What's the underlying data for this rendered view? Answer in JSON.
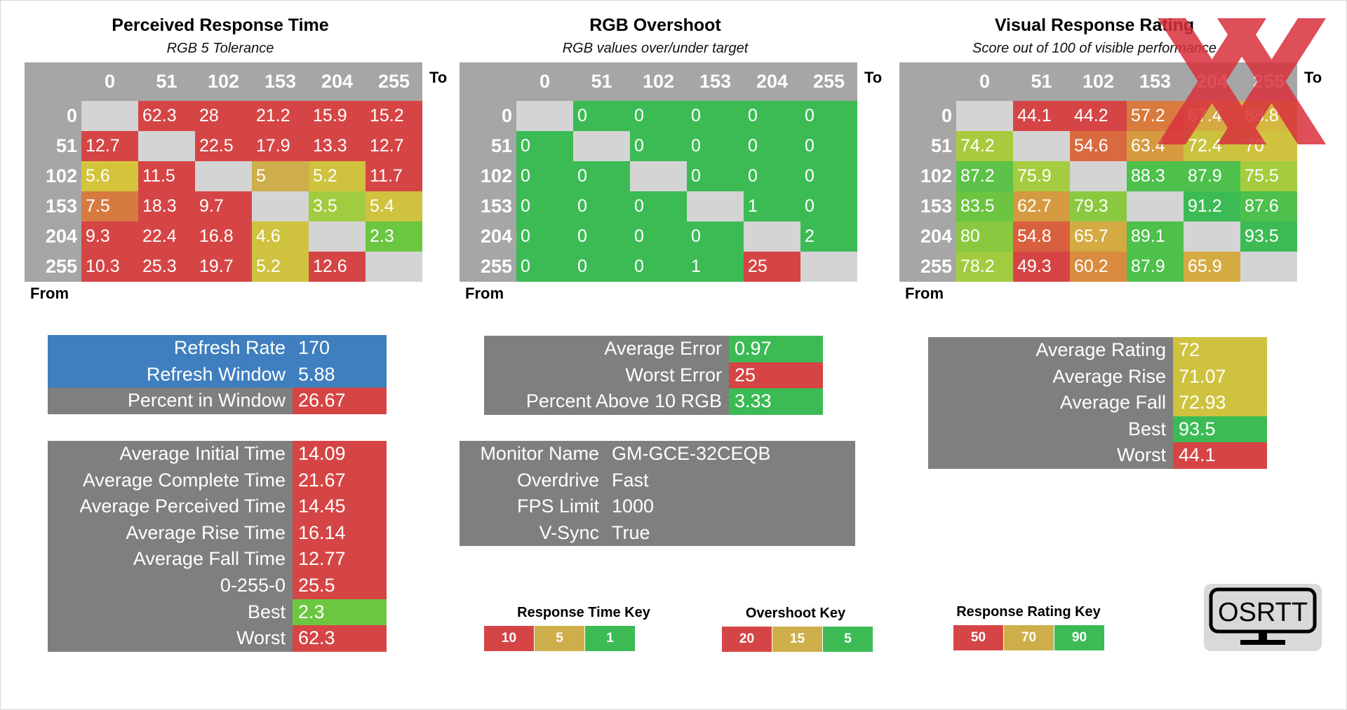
{
  "chart_data": [
    {
      "type": "heatmap",
      "title": "Perceived Response Time",
      "subtitle": "RGB 5 Tolerance",
      "to_label": "To",
      "from_label": "From",
      "columns": [
        "0",
        "51",
        "102",
        "153",
        "204",
        "255"
      ],
      "rows": [
        "0",
        "51",
        "102",
        "153",
        "204",
        "255"
      ],
      "values": [
        [
          null,
          "62.3",
          "28",
          "21.2",
          "15.9",
          "15.2"
        ],
        [
          "12.7",
          null,
          "22.5",
          "17.9",
          "13.3",
          "12.7"
        ],
        [
          "5.6",
          "11.5",
          null,
          "5",
          "5.2",
          "11.7"
        ],
        [
          "7.5",
          "18.3",
          "9.7",
          null,
          "3.5",
          "5.4"
        ],
        [
          "9.3",
          "22.4",
          "16.8",
          "4.6",
          null,
          "2.3"
        ],
        [
          "10.3",
          "25.3",
          "19.7",
          "5.2",
          "12.6",
          null
        ]
      ],
      "colors": [
        [
          null,
          "#d64545",
          "#d64545",
          "#d64545",
          "#d64545",
          "#d64545"
        ],
        [
          "#d64545",
          null,
          "#d64545",
          "#d64545",
          "#d64545",
          "#d64545"
        ],
        [
          "#d4c43b",
          "#d64545",
          null,
          "#cdae4a",
          "#cfc23e",
          "#d64545"
        ],
        [
          "#d67a3f",
          "#d64545",
          "#d64545",
          null,
          "#a2cc3f",
          "#cfc23e"
        ],
        [
          "#d64545",
          "#d64545",
          "#d64545",
          "#cfc23e",
          null,
          "#6cc740"
        ],
        [
          "#d64545",
          "#d64545",
          "#d64545",
          "#cfc23e",
          "#d64545",
          null
        ]
      ]
    },
    {
      "type": "heatmap",
      "title": "RGB Overshoot",
      "subtitle": "RGB values over/under target",
      "to_label": "To",
      "from_label": "From",
      "columns": [
        "0",
        "51",
        "102",
        "153",
        "204",
        "255"
      ],
      "rows": [
        "0",
        "51",
        "102",
        "153",
        "204",
        "255"
      ],
      "values": [
        [
          null,
          "0",
          "0",
          "0",
          "0",
          "0"
        ],
        [
          "0",
          null,
          "0",
          "0",
          "0",
          "0"
        ],
        [
          "0",
          "0",
          null,
          "0",
          "0",
          "0"
        ],
        [
          "0",
          "0",
          "0",
          null,
          "1",
          "0"
        ],
        [
          "0",
          "0",
          "0",
          "0",
          null,
          "2"
        ],
        [
          "0",
          "0",
          "0",
          "1",
          "25",
          null
        ]
      ],
      "colors": [
        [
          null,
          "#3cbb55",
          "#3cbb55",
          "#3cbb55",
          "#3cbb55",
          "#3cbb55"
        ],
        [
          "#3cbb55",
          null,
          "#3cbb55",
          "#3cbb55",
          "#3cbb55",
          "#3cbb55"
        ],
        [
          "#3cbb55",
          "#3cbb55",
          null,
          "#3cbb55",
          "#3cbb55",
          "#3cbb55"
        ],
        [
          "#3cbb55",
          "#3cbb55",
          "#3cbb55",
          null,
          "#3cbb55",
          "#3cbb55"
        ],
        [
          "#3cbb55",
          "#3cbb55",
          "#3cbb55",
          "#3cbb55",
          null,
          "#3cbb55"
        ],
        [
          "#3cbb55",
          "#3cbb55",
          "#3cbb55",
          "#3cbb55",
          "#d64545",
          null
        ]
      ]
    },
    {
      "type": "heatmap",
      "title": "Visual Response Rating",
      "subtitle": "Score out of 100 of visible performance",
      "to_label": "To",
      "from_label": "From",
      "columns": [
        "0",
        "51",
        "102",
        "153",
        "204",
        "255"
      ],
      "rows": [
        "0",
        "51",
        "102",
        "153",
        "204",
        "255"
      ],
      "values": [
        [
          null,
          "44.1",
          "44.2",
          "57.2",
          "67.4",
          "68.8"
        ],
        [
          "74.2",
          null,
          "54.6",
          "63.4",
          "72.4",
          "70"
        ],
        [
          "87.2",
          "75.9",
          null,
          "88.3",
          "87.9",
          "75.5"
        ],
        [
          "83.5",
          "62.7",
          "79.3",
          null,
          "91.2",
          "87.6"
        ],
        [
          "80",
          "54.8",
          "65.7",
          "89.1",
          null,
          "93.5"
        ],
        [
          "78.2",
          "49.3",
          "60.2",
          "87.9",
          "65.9",
          null
        ]
      ],
      "colors": [
        [
          null,
          "#d64545",
          "#d64545",
          "#d97a3f",
          "#d4ab42",
          "#d4b83f"
        ],
        [
          "#a9ca3e",
          null,
          "#d96a40",
          "#d69a40",
          "#cbc33e",
          "#cfc23e"
        ],
        [
          "#5cc249",
          "#a5cc3e",
          null,
          "#4ec04c",
          "#4ec04c",
          "#a5cc3e"
        ],
        [
          "#6cc440",
          "#d49a40",
          "#8ac93f",
          null,
          "#3cbb55",
          "#4ec04c"
        ],
        [
          "#8ac93f",
          "#d9603f",
          "#d4ab42",
          "#4ec04c",
          null,
          "#3cbb55"
        ],
        [
          "#a2cc3f",
          "#d64545",
          "#d98b40",
          "#4ec04c",
          "#d4ab42",
          null
        ]
      ]
    }
  ],
  "panels": {
    "refresh": [
      {
        "label": "Refresh Rate",
        "value": "170",
        "label_bg": "#3f7fbf",
        "value_bg": "#3f7fbf"
      },
      {
        "label": "Refresh Window",
        "value": "5.88",
        "label_bg": "#3f7fbf",
        "value_bg": "#3f7fbf"
      },
      {
        "label": "Percent in Window",
        "value": "26.67",
        "label_bg": "#7f7f7f",
        "value_bg": "#d64545"
      }
    ],
    "error": [
      {
        "label": "Average Error",
        "value": "0.97",
        "value_bg": "#3cbb55"
      },
      {
        "label": "Worst Error",
        "value": "25",
        "value_bg": "#d64545"
      },
      {
        "label": "Percent Above 10 RGB",
        "value": "3.33",
        "value_bg": "#3cbb55"
      }
    ],
    "rating": [
      {
        "label": "Average Rating",
        "value": "72",
        "value_bg": "#cfc23e"
      },
      {
        "label": "Average Rise",
        "value": "71.07",
        "value_bg": "#cfc23e"
      },
      {
        "label": "Average Fall",
        "value": "72.93",
        "value_bg": "#cfc23e"
      },
      {
        "label": "Best",
        "value": "93.5",
        "value_bg": "#3cbb55"
      },
      {
        "label": "Worst",
        "value": "44.1",
        "value_bg": "#d64545"
      }
    ],
    "times": [
      {
        "label": "Average Initial Time",
        "value": "14.09",
        "value_bg": "#d64545"
      },
      {
        "label": "Average Complete Time",
        "value": "21.67",
        "value_bg": "#d64545"
      },
      {
        "label": "Average Perceived Time",
        "value": "14.45",
        "value_bg": "#d64545"
      },
      {
        "label": "Average Rise Time",
        "value": "16.14",
        "value_bg": "#d64545"
      },
      {
        "label": "Average Fall Time",
        "value": "12.77",
        "value_bg": "#d64545"
      },
      {
        "label": "0-255-0",
        "value": "25.5",
        "value_bg": "#d64545"
      },
      {
        "label": "Best",
        "value": "2.3",
        "value_bg": "#6cc740"
      },
      {
        "label": "Worst",
        "value": "62.3",
        "value_bg": "#d64545"
      }
    ],
    "monitor": [
      {
        "label": "Monitor Name",
        "value": "GM-GCE-32CEQB"
      },
      {
        "label": "Overdrive",
        "value": "Fast"
      },
      {
        "label": "FPS Limit",
        "value": "1000"
      },
      {
        "label": "V-Sync",
        "value": "True"
      }
    ]
  },
  "keys": [
    {
      "title": "Response Time Key",
      "items": [
        {
          "label": "10",
          "color": "#d64545"
        },
        {
          "label": "5",
          "color": "#cdae4a"
        },
        {
          "label": "1",
          "color": "#3cbb55"
        }
      ]
    },
    {
      "title": "Overshoot Key",
      "items": [
        {
          "label": "20",
          "color": "#d64545"
        },
        {
          "label": "15",
          "color": "#cdae4a"
        },
        {
          "label": "5",
          "color": "#3cbb55"
        }
      ]
    },
    {
      "title": "Response Rating Key",
      "items": [
        {
          "label": "50",
          "color": "#d64545"
        },
        {
          "label": "70",
          "color": "#cdae4a"
        },
        {
          "label": "90",
          "color": "#3cbb55"
        }
      ]
    }
  ],
  "logo": {
    "text": "OSRTT"
  },
  "watermark": {
    "color": "#d9313d"
  },
  "colors": {
    "panel_gray": "#7f7f7f",
    "header_gray": "#a6a6a6",
    "diagonal": "#d4d4d4"
  }
}
